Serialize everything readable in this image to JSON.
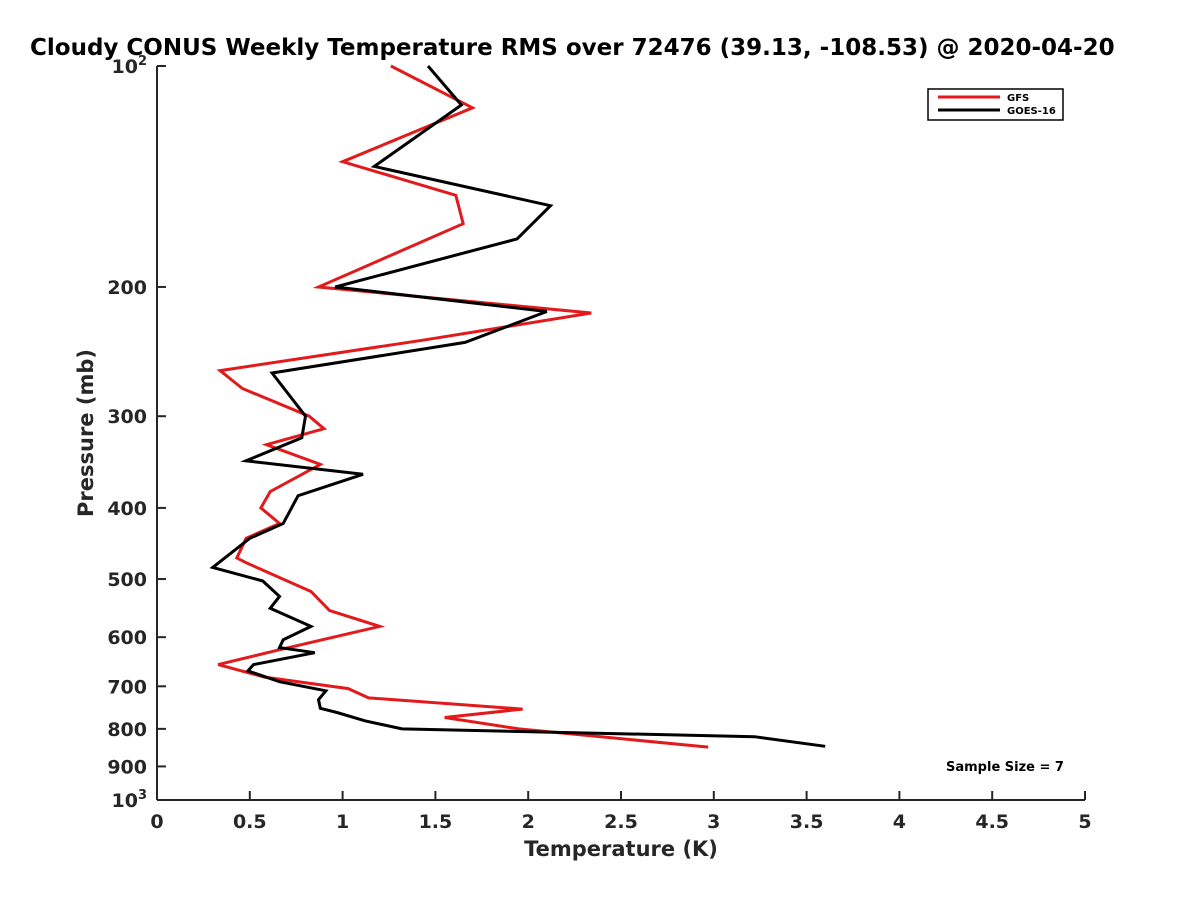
{
  "chart_data": {
    "type": "line",
    "title": "Cloudy CONUS Weekly Temperature RMS over 72476 (39.13, -108.53) @ 2020-04-20",
    "xlabel": "Temperature (K)",
    "ylabel": "Pressure (mb)",
    "xlim": [
      0,
      5
    ],
    "ylim": [
      100,
      1000
    ],
    "y_scale": "log",
    "y_reversed": true,
    "x_ticks": [
      0,
      0.5,
      1,
      1.5,
      2,
      2.5,
      3,
      3.5,
      4,
      4.5,
      5
    ],
    "x_tick_labels": [
      "0",
      "0.5",
      "1",
      "1.5",
      "2",
      "2.5",
      "3",
      "3.5",
      "4",
      "4.5",
      "5"
    ],
    "y_ticks": [
      {
        "value": 100,
        "base": "10",
        "exp": "2"
      },
      {
        "value": 200,
        "label": "200"
      },
      {
        "value": 300,
        "label": "300"
      },
      {
        "value": 400,
        "label": "400"
      },
      {
        "value": 500,
        "label": "500"
      },
      {
        "value": 600,
        "label": "600"
      },
      {
        "value": 700,
        "label": "700"
      },
      {
        "value": 800,
        "label": "800"
      },
      {
        "value": 900,
        "label": "900"
      },
      {
        "value": 1000,
        "base": "10",
        "exp": "3"
      }
    ],
    "grid": false,
    "legend_position": "top-right",
    "series": [
      {
        "name": "GFS",
        "color": "#e31a1c",
        "points": [
          [
            1.26,
            100
          ],
          [
            1.7,
            114
          ],
          [
            1.0,
            135
          ],
          [
            1.61,
            150
          ],
          [
            1.65,
            164
          ],
          [
            0.87,
            200
          ],
          [
            2.34,
            217
          ],
          [
            1.45,
            236
          ],
          [
            0.34,
            260
          ],
          [
            0.46,
            275
          ],
          [
            0.82,
            300
          ],
          [
            0.9,
            312
          ],
          [
            0.59,
            328
          ],
          [
            0.88,
            349
          ],
          [
            0.61,
            380
          ],
          [
            0.56,
            400
          ],
          [
            0.66,
            420
          ],
          [
            0.48,
            440
          ],
          [
            0.43,
            468
          ],
          [
            0.48,
            475
          ],
          [
            0.83,
            520
          ],
          [
            0.93,
            552
          ],
          [
            1.2,
            580
          ],
          [
            0.65,
            625
          ],
          [
            0.33,
            654
          ],
          [
            0.58,
            680
          ],
          [
            1.03,
            705
          ],
          [
            1.14,
            726
          ],
          [
            1.97,
            752
          ],
          [
            1.55,
            772
          ],
          [
            1.95,
            800
          ],
          [
            2.97,
            847
          ]
        ]
      },
      {
        "name": "GOES-16",
        "color": "#000000",
        "points": [
          [
            1.46,
            100
          ],
          [
            1.64,
            113
          ],
          [
            1.17,
            137
          ],
          [
            2.12,
            155
          ],
          [
            1.94,
            172
          ],
          [
            0.96,
            200
          ],
          [
            2.1,
            216
          ],
          [
            1.66,
            238
          ],
          [
            0.62,
            262
          ],
          [
            0.8,
            300
          ],
          [
            0.78,
            321
          ],
          [
            0.48,
            345
          ],
          [
            1.11,
            360
          ],
          [
            0.76,
            385
          ],
          [
            0.68,
            420
          ],
          [
            0.5,
            440
          ],
          [
            0.3,
            482
          ],
          [
            0.57,
            503
          ],
          [
            0.66,
            528
          ],
          [
            0.61,
            548
          ],
          [
            0.83,
            580
          ],
          [
            0.68,
            605
          ],
          [
            0.66,
            620
          ],
          [
            0.85,
            630
          ],
          [
            0.52,
            654
          ],
          [
            0.49,
            667
          ],
          [
            0.66,
            690
          ],
          [
            0.91,
            710
          ],
          [
            0.87,
            730
          ],
          [
            0.88,
            750
          ],
          [
            0.97,
            760
          ],
          [
            1.12,
            780
          ],
          [
            1.32,
            800
          ],
          [
            3.22,
            820
          ],
          [
            3.6,
            845
          ]
        ]
      }
    ],
    "annotations": [
      "Sample Size = 7"
    ]
  }
}
